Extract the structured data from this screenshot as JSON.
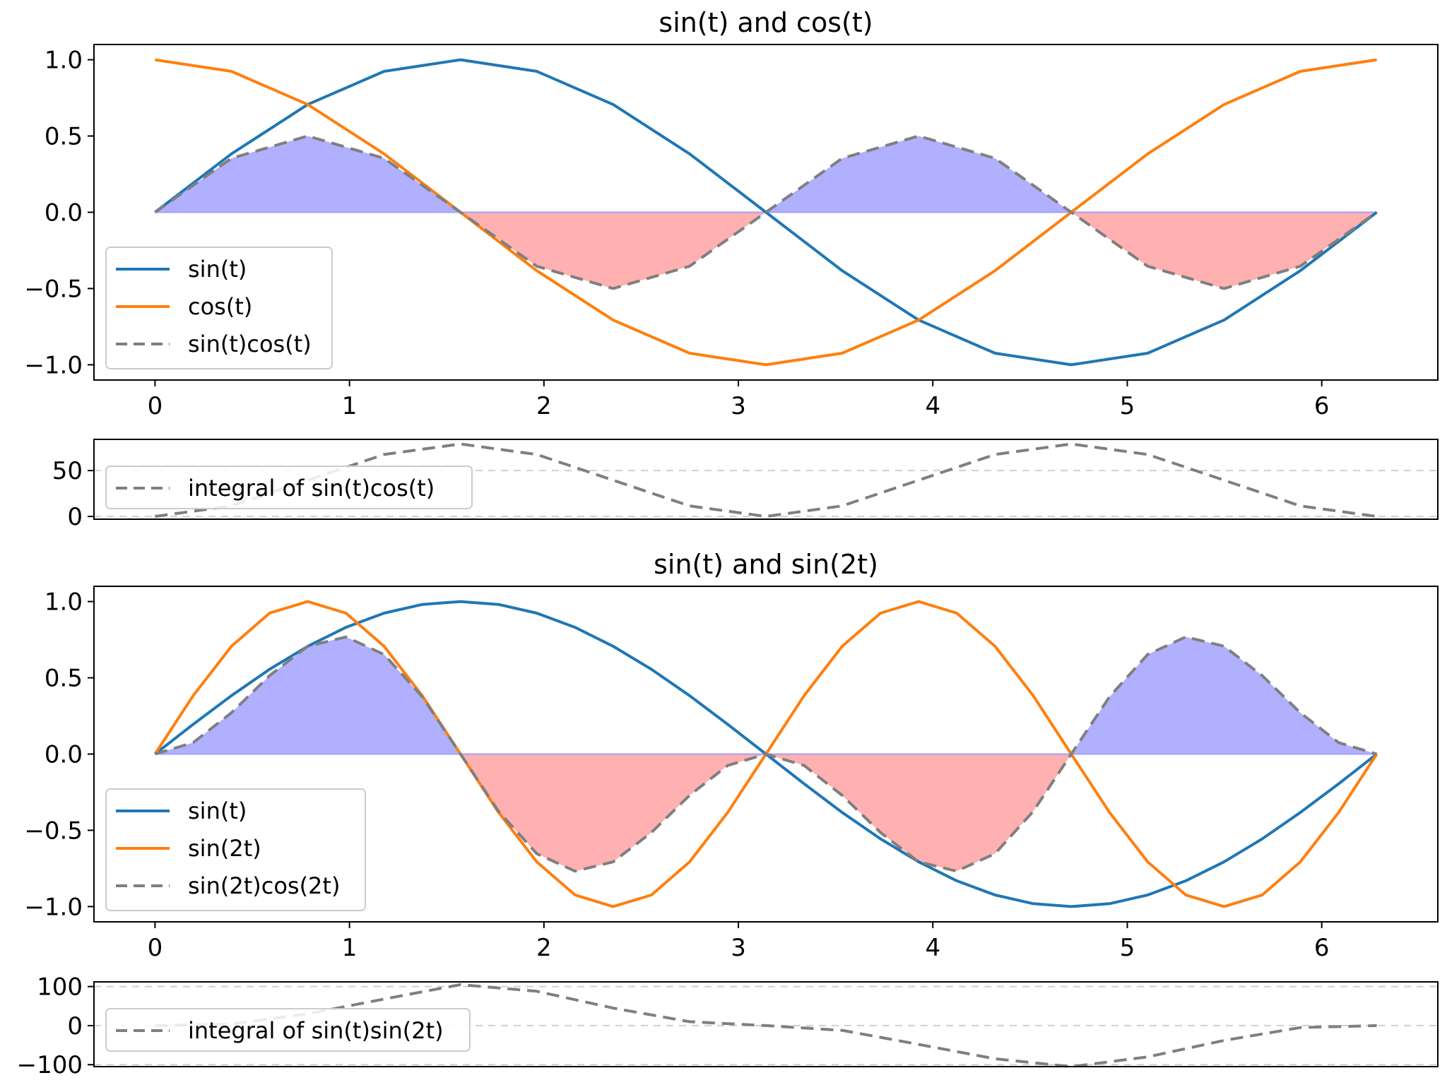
{
  "chart_data": [
    {
      "type": "line",
      "title": "sin(t) and cos(t)",
      "xlabel": "",
      "ylabel": "",
      "xlim": [
        -0.314,
        6.597
      ],
      "ylim": [
        -1.1,
        1.1
      ],
      "xticks": [
        0,
        1,
        2,
        3,
        4,
        5,
        6
      ],
      "yticks": [
        1.0,
        0.5,
        0.0,
        -0.5,
        -1.0
      ],
      "ytick_labels": [
        "1.0",
        "0.5",
        "0.0",
        "−0.5",
        "−1.0"
      ],
      "grid": false,
      "legend_position": "lower-left",
      "x": [
        0,
        0.393,
        0.785,
        1.178,
        1.571,
        1.963,
        2.356,
        2.749,
        3.142,
        3.534,
        3.927,
        4.32,
        4.712,
        5.105,
        5.498,
        5.89,
        6.283
      ],
      "series": [
        {
          "name": "sin(t)",
          "color": "#1f77b4",
          "style": "solid",
          "values": [
            0,
            0.383,
            0.707,
            0.924,
            1.0,
            0.924,
            0.707,
            0.383,
            0,
            -0.383,
            -0.707,
            -0.924,
            -1.0,
            -0.924,
            -0.707,
            -0.383,
            0
          ]
        },
        {
          "name": "cos(t)",
          "color": "#ff7f0e",
          "style": "solid",
          "values": [
            1.0,
            0.924,
            0.707,
            0.383,
            0,
            -0.383,
            -0.707,
            -0.924,
            -1.0,
            -0.924,
            -0.707,
            -0.383,
            0,
            0.383,
            0.707,
            0.924,
            1.0
          ]
        },
        {
          "name": "sin(t)cos(t)",
          "color": "#7f7f7f",
          "style": "dashed",
          "values": [
            0,
            0.354,
            0.5,
            0.354,
            0,
            -0.354,
            -0.5,
            -0.354,
            0,
            0.354,
            0.5,
            0.354,
            0,
            -0.354,
            -0.5,
            -0.354,
            0
          ]
        }
      ],
      "fill": {
        "positive_color": "#b0b0ff",
        "negative_color": "#ffb0b0"
      }
    },
    {
      "type": "line",
      "title": "",
      "xlim": [
        -0.314,
        6.597
      ],
      "ylim": [
        -3,
        84
      ],
      "yticks": [
        50,
        0
      ],
      "ytick_labels": [
        "50",
        "0"
      ],
      "grid": true,
      "legend_position": "upper-left",
      "x": [
        0,
        0.393,
        0.785,
        1.178,
        1.571,
        1.963,
        2.356,
        2.749,
        3.142,
        3.534,
        3.927,
        4.32,
        4.712,
        5.105,
        5.498,
        5.89,
        6.283
      ],
      "series": [
        {
          "name": "integral of sin(t)cos(t)",
          "color": "#7f7f7f",
          "style": "dashed",
          "values": [
            0,
            11.5,
            39.5,
            67.5,
            79,
            67.5,
            39.5,
            11.5,
            0,
            11.5,
            39.5,
            67.5,
            79,
            67.5,
            39.5,
            11.5,
            0
          ]
        }
      ]
    },
    {
      "type": "line",
      "title": "sin(t) and sin(2t)",
      "xlabel": "",
      "ylabel": "",
      "xlim": [
        -0.314,
        6.597
      ],
      "ylim": [
        -1.1,
        1.1
      ],
      "xticks": [
        0,
        1,
        2,
        3,
        4,
        5,
        6
      ],
      "yticks": [
        1.0,
        0.5,
        0.0,
        -0.5,
        -1.0
      ],
      "ytick_labels": [
        "1.0",
        "0.5",
        "0.0",
        "−0.5",
        "−1.0"
      ],
      "grid": false,
      "legend_position": "lower-left",
      "x": [
        0,
        0.196,
        0.393,
        0.589,
        0.785,
        0.982,
        1.178,
        1.374,
        1.571,
        1.767,
        1.963,
        2.16,
        2.356,
        2.553,
        2.749,
        2.945,
        3.142,
        3.338,
        3.534,
        3.731,
        3.927,
        4.123,
        4.32,
        4.516,
        4.712,
        4.909,
        5.105,
        5.301,
        5.498,
        5.694,
        5.89,
        6.087,
        6.283
      ],
      "series": [
        {
          "name": "sin(t)",
          "color": "#1f77b4",
          "style": "solid",
          "values": [
            0,
            0.195,
            0.383,
            0.556,
            0.707,
            0.831,
            0.924,
            0.981,
            1.0,
            0.981,
            0.924,
            0.831,
            0.707,
            0.556,
            0.383,
            0.195,
            0,
            -0.195,
            -0.383,
            -0.556,
            -0.707,
            -0.831,
            -0.924,
            -0.981,
            -1.0,
            -0.981,
            -0.924,
            -0.831,
            -0.707,
            -0.556,
            -0.383,
            -0.195,
            0
          ]
        },
        {
          "name": "sin(2t)",
          "color": "#ff7f0e",
          "style": "solid",
          "values": [
            0,
            0.383,
            0.707,
            0.924,
            1.0,
            0.924,
            0.707,
            0.383,
            0,
            -0.383,
            -0.707,
            -0.924,
            -1.0,
            -0.924,
            -0.707,
            -0.383,
            0,
            0.383,
            0.707,
            0.924,
            1.0,
            0.924,
            0.707,
            0.383,
            0,
            -0.383,
            -0.707,
            -0.924,
            -1.0,
            -0.924,
            -0.707,
            -0.383,
            0
          ]
        },
        {
          "name": "sin(2t)cos(2t)",
          "color": "#7f7f7f",
          "style": "dashed",
          "values": [
            0,
            0.075,
            0.271,
            0.514,
            0.707,
            0.768,
            0.653,
            0.376,
            0,
            -0.376,
            -0.653,
            -0.768,
            -0.707,
            -0.514,
            -0.271,
            -0.075,
            0,
            -0.075,
            -0.271,
            -0.514,
            -0.707,
            -0.768,
            -0.653,
            -0.376,
            0,
            0.376,
            0.653,
            0.768,
            0.707,
            0.514,
            0.271,
            0.075,
            0
          ]
        }
      ],
      "fill": {
        "positive_color": "#b0b0ff",
        "negative_color": "#ffb0b0"
      }
    },
    {
      "type": "line",
      "title": "",
      "xlim": [
        -0.314,
        6.597
      ],
      "ylim": [
        -105,
        112
      ],
      "yticks": [
        100,
        0,
        -100
      ],
      "ytick_labels": [
        "100",
        "0",
        "−100"
      ],
      "grid": true,
      "legend_position": "lower-left",
      "x": [
        0,
        0.393,
        0.785,
        1.178,
        1.571,
        1.963,
        2.356,
        2.749,
        3.142,
        3.534,
        3.927,
        4.32,
        4.712,
        5.105,
        5.498,
        5.89,
        6.283
      ],
      "series": [
        {
          "name": "integral of sin(t)sin(2t)",
          "color": "#7f7f7f",
          "style": "dashed",
          "values": [
            0,
            4,
            30,
            68,
            105,
            88,
            45,
            10,
            0,
            -12,
            -48,
            -85,
            -105,
            -80,
            -38,
            -5,
            0
          ]
        }
      ]
    }
  ]
}
